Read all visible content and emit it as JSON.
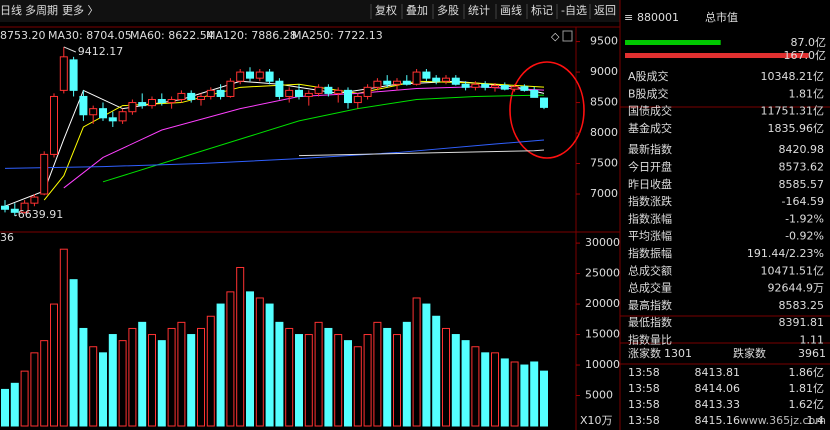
{
  "toolbar": {
    "left": [
      "日线",
      "多周期",
      "更多 〉"
    ],
    "right": [
      "复权",
      "叠加",
      "多股",
      "统计",
      "画线",
      "标记",
      "-自选",
      "返回"
    ]
  },
  "chart_data": [
    {
      "type": "candlestick",
      "ma_legend": [
        {
          "text": "8753.20",
          "color": "#ffff00"
        },
        {
          "text": "MA30: 8704.05",
          "color": "#ff40ff"
        },
        {
          "text": "MA60: 8622.54",
          "color": "#00e000"
        },
        {
          "text": "MA120: 7886.28",
          "color": "#3060ff"
        },
        {
          "text": "MA250: 7722.13",
          "color": "#ffffff"
        }
      ],
      "open": [
        6800,
        6750,
        6700,
        6850,
        7000,
        7650,
        8700,
        9200,
        8600,
        8300,
        8400,
        8250,
        8200,
        8350,
        8500,
        8450,
        8550,
        8500,
        8550,
        8650,
        8550,
        8600,
        8700,
        8600,
        8850,
        9000,
        8900,
        9000,
        8850,
        8600,
        8700,
        8600,
        8650,
        8750,
        8650,
        8700,
        8500,
        8600,
        8750,
        8850,
        8800,
        8850,
        8800,
        9000,
        8900,
        8850,
        8900,
        8800,
        8750,
        8800,
        8750,
        8780,
        8720,
        8760,
        8700,
        8573.62
      ],
      "high": [
        6900,
        6850,
        6900,
        7000,
        7700,
        8650,
        9412.17,
        9250,
        8700,
        8450,
        8500,
        8350,
        8400,
        8550,
        8650,
        8600,
        8650,
        8600,
        8700,
        8700,
        8650,
        8750,
        8800,
        8900,
        9050,
        9080,
        9050,
        9050,
        8900,
        8750,
        8800,
        8700,
        8800,
        8800,
        8750,
        8750,
        8650,
        8800,
        8900,
        8950,
        8900,
        8950,
        9050,
        9050,
        8950,
        8950,
        8950,
        8850,
        8850,
        8850,
        8820,
        8830,
        8800,
        8800,
        8760,
        8583.25
      ],
      "low": [
        6700,
        6639.91,
        6680,
        6800,
        6980,
        7600,
        8650,
        8600,
        8200,
        8150,
        8200,
        8100,
        8150,
        8300,
        8400,
        8400,
        8450,
        8400,
        8500,
        8500,
        8450,
        8550,
        8550,
        8580,
        8800,
        8850,
        8850,
        8800,
        8550,
        8500,
        8550,
        8450,
        8600,
        8600,
        8500,
        8400,
        8400,
        8550,
        8700,
        8750,
        8700,
        8780,
        8780,
        8850,
        8800,
        8800,
        8780,
        8700,
        8700,
        8700,
        8680,
        8700,
        8680,
        8680,
        8600,
        8391.81
      ],
      "close": [
        6750,
        6700,
        6850,
        6950,
        7650,
        8600,
        9250,
        8700,
        8300,
        8400,
        8250,
        8200,
        8350,
        8500,
        8450,
        8550,
        8500,
        8550,
        8650,
        8550,
        8600,
        8700,
        8600,
        8850,
        9000,
        8900,
        9000,
        8850,
        8600,
        8700,
        8600,
        8650,
        8750,
        8650,
        8700,
        8500,
        8600,
        8750,
        8850,
        8800,
        8850,
        8800,
        9000,
        8900,
        8850,
        8900,
        8800,
        8750,
        8800,
        8750,
        8780,
        8720,
        8760,
        8700,
        8585.57,
        8420.98
      ],
      "ma_series": [
        {
          "color": "#ffffff",
          "x": [
            0,
            4,
            6,
            8,
            12,
            18,
            24,
            28,
            34,
            40,
            46,
            52,
            55
          ],
          "values": [
            6800,
            7050,
            7900,
            8700,
            8400,
            8550,
            8850,
            8800,
            8650,
            8800,
            8850,
            8760,
            8650
          ]
        },
        {
          "color": "#ffff00",
          "x": [
            4,
            6,
            8,
            12,
            18,
            24,
            30,
            36,
            42,
            48,
            55
          ],
          "values": [
            6900,
            7300,
            8100,
            8450,
            8500,
            8750,
            8800,
            8650,
            8850,
            8820,
            8753.2
          ]
        },
        {
          "color": "#ff40ff",
          "x": [
            6,
            10,
            16,
            24,
            30,
            36,
            42,
            48,
            55
          ],
          "values": [
            7100,
            7600,
            8050,
            8400,
            8600,
            8650,
            8730,
            8760,
            8704.05
          ]
        },
        {
          "color": "#00e000",
          "x": [
            10,
            16,
            24,
            30,
            36,
            42,
            48,
            55
          ],
          "values": [
            7200,
            7500,
            7900,
            8200,
            8400,
            8550,
            8600,
            8622.54
          ]
        },
        {
          "color": "#3060ff",
          "x": [
            0,
            10,
            20,
            30,
            40,
            50,
            55
          ],
          "values": [
            7420,
            7450,
            7500,
            7580,
            7680,
            7820,
            7886.28
          ]
        },
        {
          "color": "#dddddd",
          "x": [
            30,
            54,
            55
          ],
          "values": [
            7630,
            7710,
            7722.13
          ]
        }
      ],
      "ylim": [
        6410,
        9690
      ],
      "yticks": [
        7000,
        7500,
        8000,
        8500,
        9000,
        9500
      ],
      "up_color": "#ff3232",
      "down_color": "#54ffff"
    },
    {
      "type": "bar",
      "label": "36",
      "unit": "X10万",
      "values": [
        6000,
        7000,
        9000,
        12000,
        14000,
        20000,
        29000,
        24000,
        16000,
        13000,
        12000,
        15000,
        14000,
        16000,
        17000,
        15000,
        14000,
        16000,
        17000,
        15000,
        16000,
        18000,
        20000,
        22000,
        26000,
        22000,
        21000,
        20000,
        17000,
        16000,
        15000,
        15000,
        17000,
        16000,
        15000,
        14000,
        13000,
        15000,
        17000,
        16000,
        15000,
        17000,
        21000,
        20000,
        18000,
        16000,
        15000,
        14000,
        13000,
        12000,
        12000,
        11000,
        10500,
        10000,
        10500,
        9000
      ],
      "ylim": [
        0,
        31000
      ],
      "yticks": [
        5000,
        10000,
        15000,
        20000,
        25000,
        30000
      ]
    }
  ],
  "panel": {
    "code": "880001",
    "name": "总市值",
    "bars": [
      {
        "value": 87.0,
        "label": "87.0亿",
        "color": "#00c800"
      },
      {
        "value": 167.0,
        "label": "167.0亿",
        "color": "#e03030"
      }
    ],
    "stats": [
      {
        "label": "A股成交",
        "value": "10348.21亿",
        "color": "#e0e0e0"
      },
      {
        "label": "B股成交",
        "value": "1.81亿",
        "color": "#e0e0e0"
      },
      {
        "label": "国债成交",
        "value": "11751.31亿",
        "color": "#e0e0e0"
      },
      {
        "label": "基金成交",
        "value": "1835.96亿",
        "color": "#e0e0e0"
      },
      {
        "label": "最新指数",
        "value": "8420.98",
        "color": "#00e600"
      },
      {
        "label": "今日开盘",
        "value": "8573.62",
        "color": "#00e600"
      },
      {
        "label": "昨日收盘",
        "value": "8585.57",
        "color": "#e0e0e0"
      },
      {
        "label": "指数涨跌",
        "value": "-164.59",
        "color": "#00e600"
      },
      {
        "label": "指数涨幅",
        "value": "-1.92%",
        "color": "#00e600"
      },
      {
        "label": "平均涨幅",
        "value": "-0.92%",
        "color": "#00e600"
      },
      {
        "label": "指数振幅",
        "value": "191.44/2.23%",
        "color": "#e0e0e0"
      },
      {
        "label": "总成交额",
        "value": "10471.51亿",
        "color": "#e0e0e0"
      },
      {
        "label": "总成交量",
        "value": "92644.9万",
        "color": "#e0e0e0"
      },
      {
        "label": "最高指数",
        "value": "8583.25",
        "color": "#00e600"
      },
      {
        "label": "最低指数",
        "value": "8391.81",
        "color": "#00e600"
      },
      {
        "label": "指数量比",
        "value": "1.11",
        "color": "#ff4040"
      }
    ],
    "breadth": {
      "up_label": "涨家数",
      "up": "1301",
      "down_label": "跌家数",
      "down": "3961"
    },
    "ticks": [
      [
        "13:58",
        "8413.81",
        "1.86亿"
      ],
      [
        "13:58",
        "8414.06",
        "1.81亿"
      ],
      [
        "13:58",
        "8413.33",
        "1.62亿"
      ],
      [
        "13:58",
        "8415.16",
        "1.4"
      ]
    ]
  },
  "watermark": "www.365jz.com"
}
